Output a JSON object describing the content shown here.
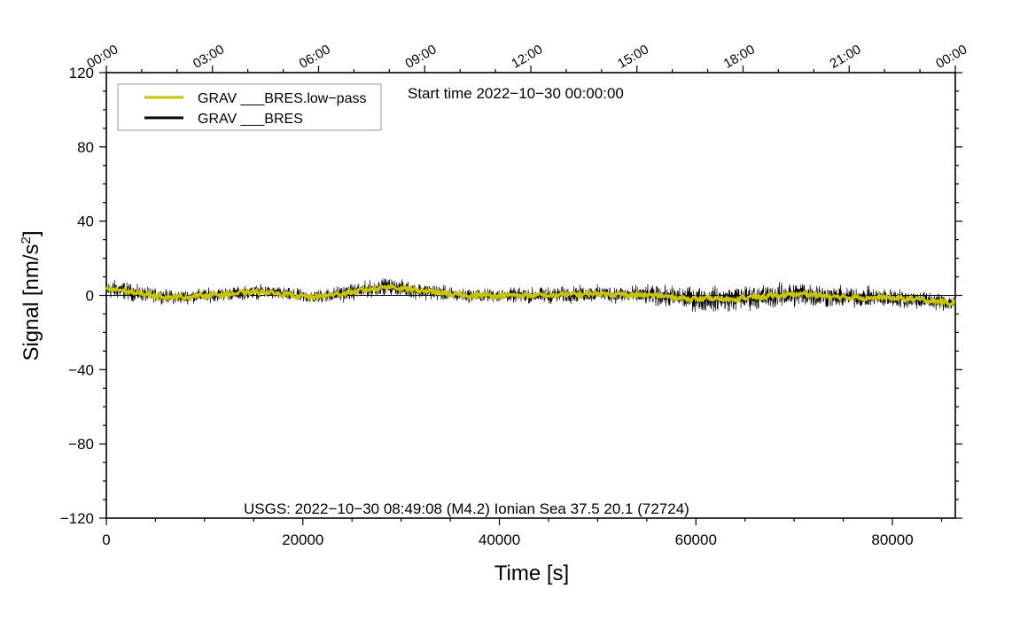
{
  "chart_data": {
    "type": "line",
    "title": "",
    "xlabel": "Time [s]",
    "ylabel": "Signal [nm/s",
    "ylabel_sup": "2",
    "ylabel_end": "]",
    "xlim": [
      0,
      86400
    ],
    "ylim": [
      -120,
      120
    ],
    "x_ticks": [
      0,
      20000,
      40000,
      60000,
      80000
    ],
    "x_tick_labels": [
      "0",
      "20000",
      "40000",
      "60000",
      "80000"
    ],
    "y_ticks": [
      -120,
      -80,
      -40,
      0,
      40,
      80,
      120
    ],
    "y_tick_labels": [
      "−120",
      "−80",
      "−40",
      "0",
      "40",
      "80",
      "120"
    ],
    "top_ticks": [
      0,
      10800,
      21600,
      32400,
      43200,
      54000,
      64800,
      75600,
      86400
    ],
    "top_tick_labels": [
      "00:00",
      "03:00",
      "06:00",
      "09:00",
      "12:00",
      "15:00",
      "18:00",
      "21:00",
      "00:00"
    ],
    "start_time_text": "Start time 2022−10−30 00:00:00",
    "event_text": "USGS: 2022−10−30 08:49:08 (M4.2) Ionian Sea 37.5 20.1 (72724)",
    "legend_position": "top-left",
    "series": [
      {
        "name": "GRAV ___BRES.low−pass",
        "color": "#c8c400",
        "x": [
          0,
          1500,
          3000,
          5000,
          7000,
          10000,
          13000,
          16000,
          19000,
          21000,
          24000,
          26500,
          28500,
          31000,
          33000,
          36000,
          40000,
          45000,
          50000,
          55000,
          58000,
          60000,
          63000,
          66000,
          69000,
          71000,
          74000,
          78000,
          82000,
          86400
        ],
        "values": [
          3,
          3,
          1,
          0,
          -1,
          0,
          1,
          2,
          0,
          -1,
          1,
          3,
          5,
          3,
          2,
          0,
          0,
          0,
          1,
          0,
          -1,
          -2,
          -2,
          -1,
          0,
          1,
          -1,
          -1,
          -2,
          -4
        ]
      },
      {
        "name": "GRAV ___BRES",
        "color": "#000000",
        "x": [
          0,
          1500,
          3000,
          5000,
          7000,
          10000,
          13000,
          16000,
          19000,
          21000,
          24000,
          26500,
          28500,
          31000,
          33000,
          36000,
          40000,
          45000,
          50000,
          55000,
          58000,
          60000,
          63000,
          66000,
          69000,
          71000,
          74000,
          78000,
          82000,
          86400
        ],
        "values": [
          3,
          3,
          1,
          0,
          -1,
          0,
          1,
          2,
          0,
          -1,
          1,
          3,
          5,
          3,
          2,
          0,
          0,
          0,
          1,
          0,
          -1,
          -2,
          -2,
          -1,
          0,
          1,
          -1,
          -1,
          -2,
          -4
        ],
        "noise_amplitude": [
          7,
          7,
          6,
          5,
          5,
          5,
          5,
          5,
          5,
          5,
          6,
          6,
          6,
          6,
          6,
          5,
          5,
          6,
          6,
          7,
          8,
          9,
          9,
          9,
          9,
          10,
          8,
          7,
          7,
          6
        ]
      }
    ]
  }
}
